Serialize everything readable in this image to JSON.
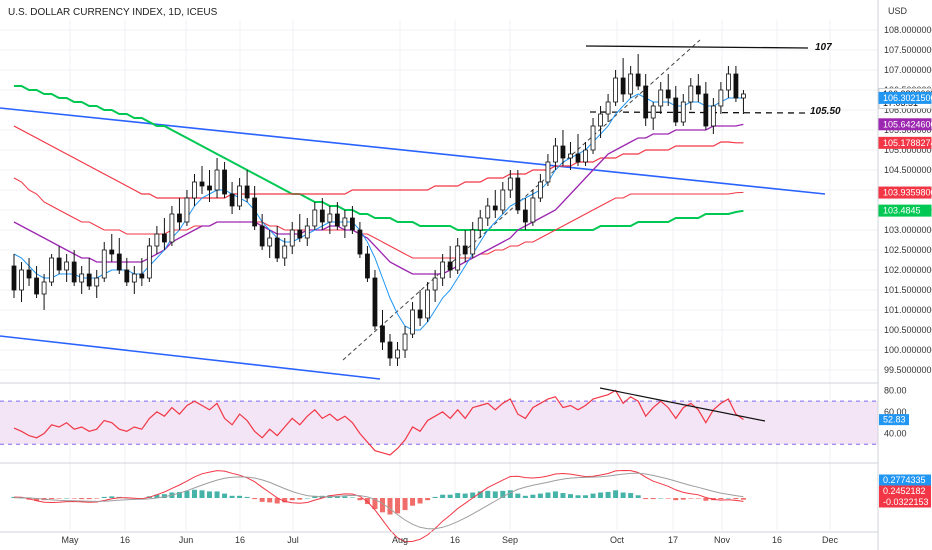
{
  "header": {
    "title": "U.S. DOLLAR CURRENCY INDEX, 1D, ICEUS"
  },
  "price_axis": {
    "currency": "USD",
    "tick_labels": [
      "108.0000000",
      "107.5000000",
      "107.0000000",
      "106.5000000",
      "106.0000000",
      "105.5000000",
      "105.0000000",
      "104.5000000",
      "104.0000000",
      "103.5000000",
      "103.0000000",
      "102.5000000",
      "102.0000000",
      "101.5000000",
      "101.0000000",
      "100.5000000",
      "100.0000000",
      "99.5000000"
    ],
    "tags": [
      {
        "label": "106.3880000",
        "sub": "17:03:51",
        "bg": "#ffffff",
        "fg": "#111111",
        "value": 106.388
      },
      {
        "label": "106.3021500",
        "bg": "#2196f3",
        "fg": "#ffffff",
        "value": 106.3021
      },
      {
        "label": "105.6424600",
        "bg": "#9c27b0",
        "fg": "#ffffff",
        "value": 105.6425
      },
      {
        "label": "105.1788274",
        "bg": "#f23645",
        "fg": "#ffffff",
        "value": 105.1788
      },
      {
        "label": "103.9359800",
        "bg": "#f23645",
        "fg": "#ffffff",
        "value": 103.936
      },
      {
        "label": "103.4845",
        "bg": "#00c853",
        "fg": "#ffffff",
        "value": 103.4845
      }
    ]
  },
  "rsi_axis": {
    "tick_labels": [
      "80.00",
      "60.00",
      "40.00"
    ],
    "tag": "52.83",
    "tag_color": "#2196f3"
  },
  "macd_axis": {
    "tags": [
      {
        "label": "0.2774335",
        "bg": "#2196f3"
      },
      {
        "label": "0.2452182",
        "bg": "#f23645"
      },
      {
        "label": "-0.0322153",
        "bg": "#f23645"
      }
    ]
  },
  "time_axis": {
    "labels": [
      "May",
      "16",
      "Jun",
      "16",
      "Jul",
      "Aug",
      "16",
      "Sep",
      "Oct",
      "17",
      "Nov",
      "16",
      "Dec"
    ]
  },
  "annotations": {
    "resistance": "107",
    "support": "105.50"
  },
  "colors": {
    "up": "#ffffff",
    "down": "#111111",
    "wick": "#111111",
    "ma_short": "#2196f3",
    "ma_mid": "#9c27b0",
    "ma_long_red": "#f23645",
    "ma_green": "#00c853",
    "trend_blue": "#2962ff",
    "rsi_line": "#f23645",
    "rsi_band": "#f3e5f5",
    "macd_up": "#26a69a",
    "macd_down": "#ef5350"
  },
  "chart_data": {
    "type": "candlestick",
    "title": "U.S. DOLLAR CURRENCY INDEX, 1D, ICEUS",
    "ylim": [
      99.3,
      108.2
    ],
    "candles": [
      [
        102.1,
        102.4,
        101.3,
        101.5
      ],
      [
        101.5,
        102.2,
        101.2,
        102.0
      ],
      [
        102.0,
        102.3,
        101.6,
        101.8
      ],
      [
        101.8,
        102.1,
        101.3,
        101.4
      ],
      [
        101.4,
        101.9,
        101.0,
        101.7
      ],
      [
        101.7,
        102.4,
        101.6,
        102.3
      ],
      [
        102.3,
        102.6,
        101.9,
        102.0
      ],
      [
        102.0,
        102.4,
        101.7,
        102.2
      ],
      [
        102.2,
        102.5,
        101.6,
        101.7
      ],
      [
        101.7,
        102.1,
        101.4,
        101.9
      ],
      [
        101.9,
        102.3,
        101.5,
        101.6
      ],
      [
        101.6,
        102.0,
        101.3,
        101.8
      ],
      [
        101.8,
        102.7,
        101.7,
        102.5
      ],
      [
        102.5,
        102.9,
        102.2,
        102.4
      ],
      [
        102.4,
        102.8,
        101.9,
        102.0
      ],
      [
        102.0,
        102.3,
        101.6,
        101.7
      ],
      [
        101.7,
        102.1,
        101.4,
        101.9
      ],
      [
        101.9,
        102.3,
        101.6,
        101.8
      ],
      [
        101.8,
        102.8,
        101.7,
        102.6
      ],
      [
        102.6,
        103.1,
        102.4,
        102.9
      ],
      [
        102.9,
        103.3,
        102.5,
        102.7
      ],
      [
        102.7,
        103.6,
        102.6,
        103.4
      ],
      [
        103.4,
        103.8,
        103.0,
        103.2
      ],
      [
        103.2,
        104.0,
        103.1,
        103.8
      ],
      [
        103.8,
        104.4,
        103.6,
        104.2
      ],
      [
        104.2,
        104.6,
        103.9,
        104.1
      ],
      [
        104.1,
        104.5,
        103.7,
        104.0
      ],
      [
        104.0,
        104.8,
        103.8,
        104.5
      ],
      [
        104.5,
        104.7,
        103.8,
        103.9
      ],
      [
        103.9,
        104.2,
        103.4,
        103.6
      ],
      [
        103.6,
        104.3,
        103.5,
        104.1
      ],
      [
        104.1,
        104.5,
        103.7,
        103.8
      ],
      [
        103.8,
        104.1,
        103.0,
        103.1
      ],
      [
        103.1,
        103.4,
        102.5,
        102.6
      ],
      [
        102.6,
        103.0,
        102.3,
        102.8
      ],
      [
        102.8,
        103.1,
        102.2,
        102.3
      ],
      [
        102.3,
        102.8,
        102.1,
        102.6
      ],
      [
        102.6,
        103.2,
        102.4,
        103.0
      ],
      [
        103.0,
        103.4,
        102.7,
        102.8
      ],
      [
        102.8,
        103.3,
        102.6,
        103.1
      ],
      [
        103.1,
        103.7,
        103.0,
        103.5
      ],
      [
        103.5,
        103.8,
        103.0,
        103.2
      ],
      [
        103.2,
        103.6,
        102.9,
        103.4
      ],
      [
        103.4,
        103.7,
        103.0,
        103.1
      ],
      [
        103.1,
        103.5,
        102.8,
        103.3
      ],
      [
        103.3,
        103.6,
        102.9,
        103.0
      ],
      [
        103.0,
        103.2,
        102.3,
        102.4
      ],
      [
        102.4,
        102.6,
        101.7,
        101.8
      ],
      [
        101.8,
        102.0,
        100.5,
        100.6
      ],
      [
        100.6,
        101.0,
        100.0,
        100.2
      ],
      [
        100.2,
        100.4,
        99.6,
        99.8
      ],
      [
        99.8,
        100.2,
        99.6,
        100.0
      ],
      [
        100.0,
        100.6,
        99.8,
        100.4
      ],
      [
        100.4,
        101.2,
        100.3,
        101.0
      ],
      [
        101.0,
        101.5,
        100.6,
        100.8
      ],
      [
        100.8,
        101.7,
        100.7,
        101.5
      ],
      [
        101.5,
        102.0,
        101.2,
        101.8
      ],
      [
        101.8,
        102.4,
        101.6,
        102.2
      ],
      [
        102.2,
        102.6,
        101.8,
        102.0
      ],
      [
        102.0,
        102.8,
        101.9,
        102.6
      ],
      [
        102.6,
        103.0,
        102.2,
        102.4
      ],
      [
        102.4,
        103.2,
        102.3,
        103.0
      ],
      [
        103.0,
        103.5,
        102.8,
        103.3
      ],
      [
        103.3,
        103.8,
        103.1,
        103.6
      ],
      [
        103.6,
        104.0,
        103.3,
        103.5
      ],
      [
        103.5,
        104.2,
        103.4,
        104.0
      ],
      [
        104.0,
        104.5,
        103.8,
        104.3
      ],
      [
        104.3,
        104.5,
        103.4,
        103.5
      ],
      [
        103.5,
        103.8,
        103.0,
        103.2
      ],
      [
        103.2,
        104.0,
        103.1,
        103.8
      ],
      [
        103.8,
        104.4,
        103.7,
        104.2
      ],
      [
        104.2,
        104.9,
        104.1,
        104.7
      ],
      [
        104.7,
        105.3,
        104.5,
        105.1
      ],
      [
        105.1,
        105.5,
        104.6,
        104.8
      ],
      [
        104.8,
        105.2,
        104.5,
        104.9
      ],
      [
        104.9,
        105.4,
        104.6,
        104.7
      ],
      [
        104.7,
        105.2,
        104.6,
        105.0
      ],
      [
        105.0,
        105.8,
        104.9,
        105.6
      ],
      [
        105.6,
        106.1,
        105.3,
        105.9
      ],
      [
        105.9,
        106.4,
        105.7,
        106.2
      ],
      [
        106.2,
        107.0,
        106.1,
        106.8
      ],
      [
        106.8,
        107.3,
        106.2,
        106.4
      ],
      [
        106.4,
        107.1,
        106.3,
        106.9
      ],
      [
        106.9,
        107.4,
        106.5,
        106.6
      ],
      [
        106.6,
        106.9,
        105.6,
        105.8
      ],
      [
        105.8,
        106.2,
        105.5,
        106.1
      ],
      [
        106.1,
        106.7,
        105.9,
        106.5
      ],
      [
        106.5,
        106.9,
        106.1,
        106.3
      ],
      [
        106.3,
        106.6,
        105.6,
        105.7
      ],
      [
        105.7,
        106.4,
        105.6,
        106.2
      ],
      [
        106.2,
        106.8,
        106.0,
        106.6
      ],
      [
        106.6,
        106.9,
        106.2,
        106.4
      ],
      [
        106.4,
        106.7,
        105.5,
        105.6
      ],
      [
        105.6,
        106.3,
        105.4,
        106.1
      ],
      [
        106.1,
        106.7,
        105.9,
        106.5
      ],
      [
        106.5,
        107.1,
        106.3,
        106.9
      ],
      [
        106.9,
        107.1,
        106.2,
        106.3
      ],
      [
        106.3,
        106.5,
        105.9,
        106.4
      ]
    ],
    "sma_fast": [
      102.4,
      102.3,
      102.1,
      101.9,
      101.8,
      101.8,
      101.9,
      101.9,
      101.9,
      101.8,
      101.8,
      101.8,
      101.9,
      102.0,
      102.0,
      102.0,
      101.9,
      101.9,
      102.1,
      102.3,
      102.5,
      102.8,
      103.0,
      103.3,
      103.6,
      103.8,
      103.9,
      104.0,
      104.0,
      103.9,
      103.8,
      103.7,
      103.5,
      103.2,
      103.0,
      102.8,
      102.7,
      102.7,
      102.8,
      102.9,
      103.0,
      103.1,
      103.2,
      103.2,
      103.2,
      103.2,
      103.0,
      102.7,
      102.3,
      101.8,
      101.3,
      100.9,
      100.6,
      100.5,
      100.5,
      100.7,
      101.0,
      101.3,
      101.5,
      101.8,
      102.1,
      102.4,
      102.7,
      103.0,
      103.2,
      103.4,
      103.6,
      103.7,
      103.8,
      103.9,
      104.0,
      104.2,
      104.5,
      104.7,
      104.8,
      104.9,
      105.0,
      105.2,
      105.4,
      105.6,
      105.9,
      106.1,
      106.3,
      106.4,
      106.3,
      106.2,
      106.2,
      106.2,
      106.1,
      106.1,
      106.2,
      106.2,
      106.1,
      106.1,
      106.2,
      106.3,
      106.3,
      106.3
    ],
    "sma_mid": [
      103.2,
      103.1,
      103.0,
      102.9,
      102.8,
      102.7,
      102.6,
      102.5,
      102.4,
      102.3,
      102.3,
      102.2,
      102.2,
      102.2,
      102.2,
      102.2,
      102.2,
      102.2,
      102.3,
      102.4,
      102.5,
      102.7,
      102.8,
      102.9,
      103.0,
      103.1,
      103.1,
      103.2,
      103.2,
      103.2,
      103.2,
      103.2,
      103.2,
      103.1,
      103.0,
      102.9,
      102.9,
      102.9,
      102.9,
      103.0,
      103.0,
      103.0,
      103.1,
      103.1,
      103.0,
      103.0,
      102.9,
      102.8,
      102.6,
      102.4,
      102.2,
      102.1,
      102.0,
      101.9,
      101.9,
      101.9,
      101.9,
      101.9,
      102.0,
      102.1,
      102.2,
      102.3,
      102.4,
      102.5,
      102.6,
      102.7,
      102.8,
      103.0,
      103.1,
      103.2,
      103.3,
      103.4,
      103.5,
      103.7,
      103.9,
      104.1,
      104.3,
      104.5,
      104.7,
      104.9,
      105.0,
      105.1,
      105.2,
      105.3,
      105.3,
      105.4,
      105.4,
      105.4,
      105.5,
      105.5,
      105.5,
      105.5,
      105.5,
      105.6,
      105.6,
      105.6,
      105.6,
      105.64
    ],
    "sma_red": [
      104.3,
      104.2,
      104.0,
      103.9,
      103.7,
      103.6,
      103.5,
      103.4,
      103.3,
      103.2,
      103.2,
      103.1,
      103.0,
      103.0,
      103.0,
      102.9,
      102.9,
      102.9,
      102.9,
      102.9,
      102.9,
      103.0,
      103.0,
      103.0,
      103.1,
      103.1,
      103.1,
      103.2,
      103.2,
      103.2,
      103.2,
      103.2,
      103.2,
      103.2,
      103.1,
      103.1,
      103.0,
      103.0,
      103.0,
      103.0,
      103.0,
      103.0,
      103.0,
      103.0,
      103.0,
      103.0,
      102.9,
      102.9,
      102.8,
      102.7,
      102.6,
      102.5,
      102.4,
      102.3,
      102.3,
      102.3,
      102.3,
      102.3,
      102.3,
      102.3,
      102.3,
      102.3,
      102.4,
      102.4,
      102.5,
      102.5,
      102.6,
      102.6,
      102.7,
      102.7,
      102.8,
      102.9,
      103.0,
      103.1,
      103.2,
      103.3,
      103.4,
      103.5,
      103.6,
      103.7,
      103.8,
      103.8,
      103.9,
      103.9,
      103.9,
      103.9,
      103.9,
      103.9,
      103.9,
      103.9,
      103.9,
      103.9,
      103.9,
      103.9,
      103.9,
      103.9,
      103.93,
      103.94
    ],
    "sma_green": [
      106.6,
      106.6,
      106.5,
      106.5,
      106.4,
      106.4,
      106.3,
      106.3,
      106.2,
      106.2,
      106.1,
      106.1,
      106.0,
      106.0,
      105.9,
      105.9,
      105.8,
      105.8,
      105.7,
      105.6,
      105.6,
      105.5,
      105.4,
      105.3,
      105.2,
      105.1,
      105.0,
      104.9,
      104.8,
      104.7,
      104.6,
      104.5,
      104.4,
      104.3,
      104.2,
      104.1,
      104.0,
      103.9,
      103.9,
      103.8,
      103.7,
      103.7,
      103.6,
      103.6,
      103.5,
      103.5,
      103.4,
      103.4,
      103.3,
      103.3,
      103.3,
      103.2,
      103.2,
      103.2,
      103.1,
      103.1,
      103.1,
      103.1,
      103.1,
      103.0,
      103.0,
      103.0,
      103.0,
      103.0,
      103.0,
      103.0,
      103.0,
      103.0,
      103.0,
      103.0,
      103.0,
      103.0,
      103.0,
      103.0,
      103.0,
      103.0,
      103.0,
      103.0,
      103.1,
      103.1,
      103.1,
      103.1,
      103.1,
      103.2,
      103.2,
      103.2,
      103.2,
      103.2,
      103.3,
      103.3,
      103.3,
      103.3,
      103.4,
      103.4,
      103.4,
      103.4,
      103.45,
      103.48
    ],
    "sma_red_long": [
      105.6,
      105.5,
      105.4,
      105.3,
      105.2,
      105.1,
      105.0,
      104.9,
      104.8,
      104.7,
      104.6,
      104.5,
      104.4,
      104.3,
      104.2,
      104.1,
      104.0,
      103.9,
      103.9,
      103.8,
      103.8,
      103.8,
      103.8,
      103.8,
      103.8,
      103.8,
      103.8,
      103.8,
      103.8,
      103.9,
      103.9,
      103.9,
      103.9,
      103.9,
      103.9,
      103.9,
      103.9,
      103.9,
      103.9,
      103.9,
      103.9,
      103.9,
      103.9,
      103.9,
      103.9,
      104.0,
      104.0,
      104.0,
      104.0,
      104.0,
      104.0,
      104.0,
      104.0,
      104.0,
      104.0,
      104.0,
      104.1,
      104.1,
      104.1,
      104.1,
      104.2,
      104.2,
      104.2,
      104.3,
      104.3,
      104.3,
      104.4,
      104.4,
      104.4,
      104.5,
      104.5,
      104.5,
      104.6,
      104.6,
      104.6,
      104.7,
      104.7,
      104.7,
      104.8,
      104.8,
      104.8,
      104.9,
      104.9,
      104.9,
      105.0,
      105.0,
      105.0,
      105.0,
      105.1,
      105.1,
      105.1,
      105.1,
      105.1,
      105.1,
      105.2,
      105.2,
      105.18,
      105.18
    ],
    "rsi": [
      45,
      42,
      38,
      36,
      40,
      48,
      46,
      50,
      44,
      46,
      42,
      44,
      52,
      50,
      44,
      42,
      46,
      44,
      54,
      60,
      56,
      64,
      58,
      66,
      70,
      66,
      62,
      68,
      54,
      48,
      58,
      52,
      42,
      36,
      44,
      38,
      46,
      54,
      48,
      56,
      62,
      54,
      58,
      52,
      56,
      50,
      40,
      32,
      24,
      22,
      20,
      26,
      34,
      46,
      42,
      52,
      56,
      60,
      54,
      62,
      54,
      64,
      66,
      68,
      62,
      68,
      72,
      58,
      54,
      64,
      68,
      72,
      74,
      64,
      66,
      62,
      66,
      72,
      74,
      76,
      80,
      68,
      74,
      70,
      56,
      64,
      70,
      64,
      54,
      64,
      68,
      62,
      50,
      62,
      68,
      72,
      58,
      53
    ],
    "macd_hist": [
      0.02,
      0.0,
      -0.03,
      -0.05,
      -0.04,
      -0.02,
      -0.01,
      0.0,
      -0.01,
      -0.02,
      -0.02,
      -0.01,
      0.02,
      0.03,
      0.02,
      0.0,
      -0.01,
      -0.01,
      0.03,
      0.06,
      0.07,
      0.1,
      0.11,
      0.13,
      0.15,
      0.14,
      0.12,
      0.12,
      0.08,
      0.04,
      0.04,
      0.02,
      -0.02,
      -0.07,
      -0.08,
      -0.1,
      -0.08,
      -0.04,
      -0.03,
      0.0,
      0.04,
      0.04,
      0.05,
      0.03,
      0.03,
      0.01,
      -0.04,
      -0.11,
      -0.2,
      -0.26,
      -0.3,
      -0.28,
      -0.22,
      -0.14,
      -0.1,
      -0.04,
      0.02,
      0.06,
      0.06,
      0.09,
      0.08,
      0.1,
      0.12,
      0.13,
      0.12,
      0.13,
      0.14,
      0.08,
      0.04,
      0.06,
      0.08,
      0.1,
      0.12,
      0.09,
      0.07,
      0.05,
      0.05,
      0.08,
      0.1,
      0.11,
      0.14,
      0.1,
      0.09,
      0.05,
      -0.02,
      -0.02,
      0.0,
      -0.01,
      -0.04,
      -0.03,
      -0.01,
      -0.01,
      -0.05,
      -0.04,
      -0.02,
      0.0,
      -0.02,
      -0.03
    ],
    "annotations": [
      "107",
      "105.50"
    ]
  }
}
